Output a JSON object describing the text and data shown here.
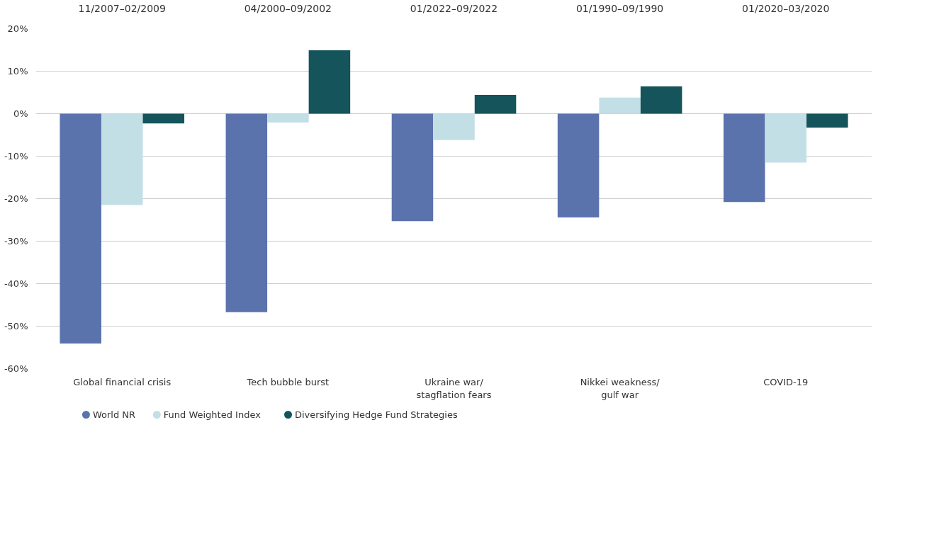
{
  "chart_data": {
    "type": "bar",
    "categories": [
      "Global financial crisis",
      "Tech bubble burst",
      "Ukraine war/\nstagflation fears",
      "Nikkei weakness/\ngulf war",
      "COVID-19"
    ],
    "series": [
      {
        "name": "World NR",
        "color": "#5b73ad",
        "values": [
          -54.1,
          -46.7,
          -25.3,
          -24.4,
          -20.8
        ]
      },
      {
        "name": "Fund Weighted Index",
        "color": "#c2dfe6",
        "values": [
          -21.5,
          -2.1,
          -6.2,
          3.8,
          -11.5
        ]
      },
      {
        "name": "Diversifying Hedge Fund Strategies",
        "color": "#14545a",
        "values": [
          -2.3,
          14.9,
          4.4,
          6.4,
          -3.3
        ]
      }
    ],
    "annotations": [
      "11/2007–02/2009",
      "04/2000–09/2002",
      "01/2022–09/2022",
      "01/1990–09/1990",
      "01/2020–03/2020"
    ],
    "ylim": [
      -60,
      20
    ],
    "yticks": [
      {
        "value": -60,
        "label": "-60%"
      },
      {
        "value": -50,
        "label": "-50%"
      },
      {
        "value": -40,
        "label": "-40%"
      },
      {
        "value": -30,
        "label": "-30%"
      },
      {
        "value": -20,
        "label": "-20%"
      },
      {
        "value": -10,
        "label": "-10%"
      },
      {
        "value": 0,
        "label": "0%"
      },
      {
        "value": 10,
        "label": "10%"
      },
      {
        "value": 20,
        "label": "20%"
      }
    ],
    "grid": "y",
    "legend": "bottom left"
  }
}
